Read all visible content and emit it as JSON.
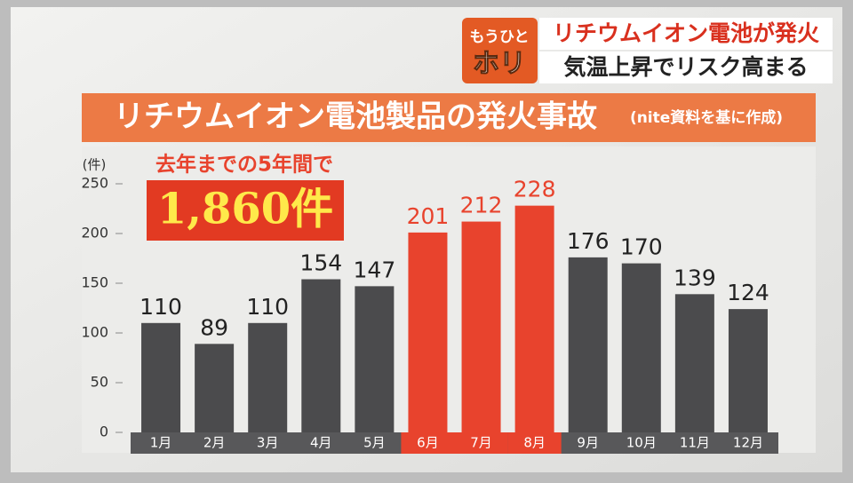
{
  "banner": {
    "logo_top": "もうひと",
    "logo_bottom": "ホリ",
    "line1": "リチウムイオン電池が発火",
    "line2": "気温上昇でリスク高まる"
  },
  "chart_data": {
    "type": "bar",
    "title": "リチウムイオン電池製品の発火事故",
    "source": "(nite資料を基に作成)",
    "y_unit": "(件)",
    "annotation_top": "去年までの5年間で",
    "annotation_total": "1,860件",
    "categories": [
      "1月",
      "2月",
      "3月",
      "4月",
      "5月",
      "6月",
      "7月",
      "8月",
      "9月",
      "10月",
      "11月",
      "12月"
    ],
    "values": [
      110,
      89,
      110,
      154,
      147,
      201,
      212,
      228,
      176,
      170,
      139,
      124
    ],
    "colors": [
      "#4b4b4d",
      "#4b4b4d",
      "#4b4b4d",
      "#4b4b4d",
      "#4b4b4d",
      "#e8432d",
      "#e8432d",
      "#e8432d",
      "#4b4b4d",
      "#4b4b4d",
      "#4b4b4d",
      "#4b4b4d"
    ],
    "ylim": [
      0,
      250
    ],
    "yticks": [
      0,
      50,
      100,
      150,
      200,
      250
    ],
    "grid": false
  }
}
